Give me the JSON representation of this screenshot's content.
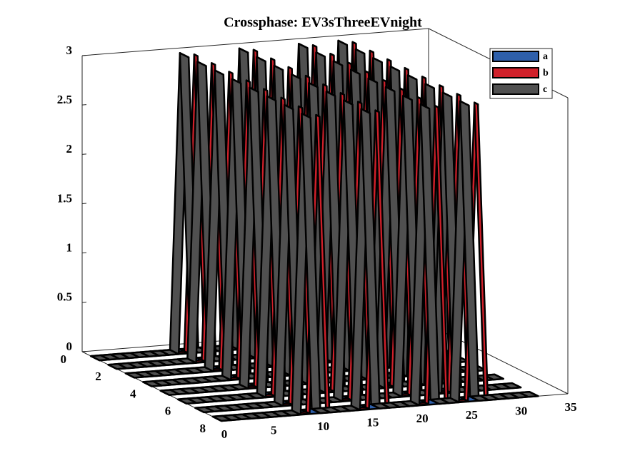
{
  "chart_data": {
    "type": "ribbon3d",
    "title": "Crossphase: EV3sThreeEVnight",
    "x": [
      0,
      1,
      2,
      3,
      4,
      5,
      6,
      7,
      8,
      9,
      10,
      11,
      12,
      13,
      14,
      15,
      16,
      17,
      18,
      19,
      20,
      21,
      22,
      23,
      24,
      25,
      26,
      27,
      28,
      29,
      30,
      31,
      32
    ],
    "rows": [
      1,
      2,
      3,
      4,
      5,
      6,
      7,
      8
    ],
    "series": [
      {
        "name": "a",
        "color": "#2e5faa",
        "values": [
          0,
          0,
          0,
          0,
          0,
          0,
          0,
          0,
          0,
          0,
          0,
          0,
          0,
          0,
          0,
          0,
          0,
          0,
          0,
          0,
          0,
          0,
          0,
          0,
          0,
          0,
          0,
          0,
          0,
          0,
          0,
          0,
          0
        ]
      },
      {
        "name": "b",
        "color": "#d0202a",
        "values": [
          0,
          0,
          0,
          0,
          0,
          0,
          0,
          0,
          0,
          0,
          3,
          0,
          0,
          0,
          0,
          0,
          3,
          0,
          0,
          0,
          0,
          0,
          3,
          0,
          0,
          0,
          3,
          0,
          0,
          0,
          0,
          0,
          0
        ]
      },
      {
        "name": "c",
        "color": "#505050",
        "values": [
          0,
          0,
          0,
          0,
          0,
          0,
          0,
          0,
          0,
          3,
          0,
          0,
          0,
          0,
          0,
          3,
          0,
          0,
          0,
          0,
          0,
          3,
          0,
          0,
          0,
          3,
          0,
          0,
          0,
          0,
          0,
          0,
          0
        ]
      }
    ],
    "xlim": [
      0,
      35
    ],
    "xticks": [
      0,
      5,
      10,
      15,
      20,
      25,
      30,
      35
    ],
    "ylim": [
      0,
      8
    ],
    "yticks": [
      0,
      2,
      4,
      6,
      8
    ],
    "zlim": [
      0,
      3
    ],
    "zticks": [
      0,
      0.5,
      1,
      1.5,
      2,
      2.5,
      3
    ],
    "legend": "top-right"
  }
}
